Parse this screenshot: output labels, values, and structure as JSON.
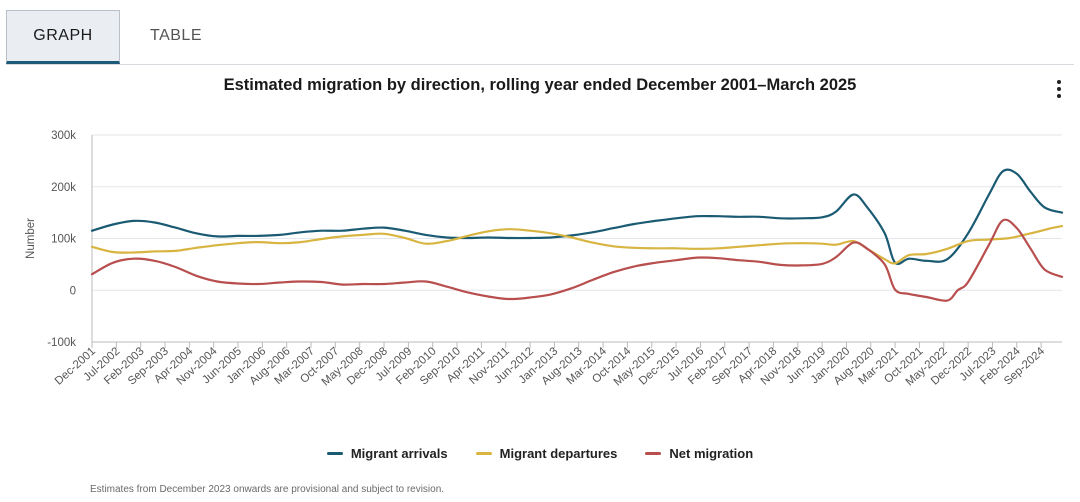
{
  "tabs": [
    {
      "label": "GRAPH",
      "active": true
    },
    {
      "label": "TABLE",
      "active": false
    }
  ],
  "menu_icon": "vertical-ellipsis-icon",
  "footnote": "Estimates from December 2023 onwards are provisional and subject to revision.",
  "colors": {
    "arrivals": "#1a5b73",
    "departures": "#d8b441",
    "net": "#b84e4e",
    "grid": "#e3e6ea",
    "axis": "#bbbbbb"
  },
  "chart_data": {
    "type": "line",
    "title": "Estimated migration by direction, rolling year ended December 2001–March 2025",
    "ylabel": "Number",
    "ylim": [
      -100000,
      300000
    ],
    "yticks": [
      -100000,
      0,
      100000,
      200000,
      300000
    ],
    "ytick_labels": [
      "-100k",
      "0",
      "100k",
      "200k",
      "300k"
    ],
    "x_start": "Dec-2001",
    "x_end": "Mar-2025",
    "xtick_labels": [
      "Dec-2001",
      "Jul-2002",
      "Feb-2003",
      "Sep-2003",
      "Apr-2004",
      "Nov-2004",
      "Jun-2005",
      "Jan-2006",
      "Aug-2006",
      "Mar-2007",
      "Oct-2007",
      "May-2008",
      "Dec-2008",
      "Jul-2009",
      "Feb-2010",
      "Sep-2010",
      "Apr-2011",
      "Nov-2011",
      "Jun-2012",
      "Jan-2013",
      "Aug-2013",
      "Mar-2014",
      "Oct-2014",
      "May-2015",
      "Dec-2015",
      "Jul-2016",
      "Feb-2017",
      "Sep-2017",
      "Apr-2018",
      "Nov-2018",
      "Jun-2019",
      "Jan-2020",
      "Aug-2020",
      "Mar-2021",
      "Oct-2021",
      "May-2022",
      "Dec-2022",
      "Jul-2023",
      "Feb-2024",
      "Sep-2024"
    ],
    "grid": true,
    "legend_position": "bottom-center",
    "series": [
      {
        "name": "Migrant arrivals",
        "color": "#1a5b73",
        "points": [
          [
            "Dec-2001",
            115000
          ],
          [
            "Jun-2002",
            127000
          ],
          [
            "Dec-2002",
            134000
          ],
          [
            "Jun-2003",
            131000
          ],
          [
            "Dec-2003",
            121000
          ],
          [
            "Jun-2004",
            110000
          ],
          [
            "Dec-2004",
            104000
          ],
          [
            "Jun-2005",
            105000
          ],
          [
            "Dec-2005",
            105000
          ],
          [
            "Jun-2006",
            107000
          ],
          [
            "Dec-2006",
            112000
          ],
          [
            "Jun-2007",
            115000
          ],
          [
            "Dec-2007",
            115000
          ],
          [
            "Jun-2008",
            119000
          ],
          [
            "Dec-2008",
            121000
          ],
          [
            "Jun-2009",
            115000
          ],
          [
            "Dec-2009",
            107000
          ],
          [
            "Jun-2010",
            102000
          ],
          [
            "Dec-2010",
            101000
          ],
          [
            "Jun-2011",
            102000
          ],
          [
            "Dec-2011",
            101000
          ],
          [
            "Jun-2012",
            101000
          ],
          [
            "Dec-2012",
            102000
          ],
          [
            "Jun-2013",
            106000
          ],
          [
            "Dec-2013",
            112000
          ],
          [
            "Jun-2014",
            120000
          ],
          [
            "Dec-2014",
            128000
          ],
          [
            "Jun-2015",
            134000
          ],
          [
            "Dec-2015",
            139000
          ],
          [
            "Jun-2016",
            143000
          ],
          [
            "Dec-2016",
            143000
          ],
          [
            "Jun-2017",
            142000
          ],
          [
            "Dec-2017",
            142000
          ],
          [
            "Jun-2018",
            139000
          ],
          [
            "Dec-2018",
            139000
          ],
          [
            "Jun-2019",
            141000
          ],
          [
            "Oct-2019",
            152000
          ],
          [
            "Mar-2020",
            185000
          ],
          [
            "Jul-2020",
            160000
          ],
          [
            "Dec-2020",
            110000
          ],
          [
            "Mar-2021",
            53000
          ],
          [
            "Jul-2021",
            61000
          ],
          [
            "Dec-2021",
            57000
          ],
          [
            "Jun-2022",
            60000
          ],
          [
            "Dec-2022",
            110000
          ],
          [
            "Jun-2023",
            185000
          ],
          [
            "Oct-2023",
            230000
          ],
          [
            "Feb-2024",
            225000
          ],
          [
            "Jun-2024",
            190000
          ],
          [
            "Oct-2024",
            160000
          ],
          [
            "Mar-2025",
            150000
          ]
        ]
      },
      {
        "name": "Migrant departures",
        "color": "#d8b441",
        "points": [
          [
            "Dec-2001",
            84000
          ],
          [
            "Jun-2002",
            74000
          ],
          [
            "Dec-2002",
            73000
          ],
          [
            "Jun-2003",
            75000
          ],
          [
            "Dec-2003",
            76000
          ],
          [
            "Jun-2004",
            82000
          ],
          [
            "Dec-2004",
            87000
          ],
          [
            "Jun-2005",
            91000
          ],
          [
            "Dec-2005",
            93000
          ],
          [
            "Jun-2006",
            91000
          ],
          [
            "Dec-2006",
            93000
          ],
          [
            "Jun-2007",
            99000
          ],
          [
            "Dec-2007",
            104000
          ],
          [
            "Jun-2008",
            107000
          ],
          [
            "Dec-2008",
            109000
          ],
          [
            "Jun-2009",
            101000
          ],
          [
            "Dec-2009",
            90000
          ],
          [
            "Jun-2010",
            95000
          ],
          [
            "Dec-2010",
            105000
          ],
          [
            "Jun-2011",
            114000
          ],
          [
            "Dec-2011",
            118000
          ],
          [
            "Jun-2012",
            115000
          ],
          [
            "Dec-2012",
            110000
          ],
          [
            "Jun-2013",
            102000
          ],
          [
            "Dec-2013",
            92000
          ],
          [
            "Jun-2014",
            85000
          ],
          [
            "Dec-2014",
            82000
          ],
          [
            "Jun-2015",
            81000
          ],
          [
            "Dec-2015",
            81000
          ],
          [
            "Jun-2016",
            80000
          ],
          [
            "Dec-2016",
            81000
          ],
          [
            "Jun-2017",
            84000
          ],
          [
            "Dec-2017",
            87000
          ],
          [
            "Jun-2018",
            90000
          ],
          [
            "Dec-2018",
            91000
          ],
          [
            "Jun-2019",
            90000
          ],
          [
            "Oct-2019",
            88000
          ],
          [
            "Mar-2020",
            95000
          ],
          [
            "Jul-2020",
            80000
          ],
          [
            "Dec-2020",
            60000
          ],
          [
            "Mar-2021",
            52000
          ],
          [
            "Jul-2021",
            68000
          ],
          [
            "Dec-2021",
            70000
          ],
          [
            "Jun-2022",
            80000
          ],
          [
            "Dec-2022",
            95000
          ],
          [
            "Jun-2023",
            98000
          ],
          [
            "Dec-2023",
            101000
          ],
          [
            "Jun-2024",
            110000
          ],
          [
            "Dec-2024",
            120000
          ],
          [
            "Mar-2025",
            124000
          ]
        ]
      },
      {
        "name": "Net migration",
        "color": "#b84e4e",
        "points": [
          [
            "Dec-2001",
            31000
          ],
          [
            "Jun-2002",
            53000
          ],
          [
            "Dec-2002",
            61000
          ],
          [
            "Jun-2003",
            57000
          ],
          [
            "Dec-2003",
            45000
          ],
          [
            "Jun-2004",
            28000
          ],
          [
            "Dec-2004",
            17000
          ],
          [
            "Jun-2005",
            13000
          ],
          [
            "Dec-2005",
            12000
          ],
          [
            "Jun-2006",
            15000
          ],
          [
            "Dec-2006",
            17000
          ],
          [
            "Jun-2007",
            16000
          ],
          [
            "Dec-2007",
            11000
          ],
          [
            "Jun-2008",
            12000
          ],
          [
            "Dec-2008",
            12000
          ],
          [
            "Jun-2009",
            15000
          ],
          [
            "Dec-2009",
            17000
          ],
          [
            "Jun-2010",
            7000
          ],
          [
            "Dec-2010",
            -4000
          ],
          [
            "Jun-2011",
            -12000
          ],
          [
            "Dec-2011",
            -17000
          ],
          [
            "Jun-2012",
            -14000
          ],
          [
            "Dec-2012",
            -8000
          ],
          [
            "Jun-2013",
            4000
          ],
          [
            "Dec-2013",
            20000
          ],
          [
            "Jun-2014",
            35000
          ],
          [
            "Dec-2014",
            46000
          ],
          [
            "Jun-2015",
            53000
          ],
          [
            "Dec-2015",
            58000
          ],
          [
            "Jun-2016",
            63000
          ],
          [
            "Dec-2016",
            62000
          ],
          [
            "Jun-2017",
            58000
          ],
          [
            "Dec-2017",
            55000
          ],
          [
            "Jun-2018",
            49000
          ],
          [
            "Dec-2018",
            48000
          ],
          [
            "Jun-2019",
            51000
          ],
          [
            "Oct-2019",
            64000
          ],
          [
            "Mar-2020",
            92000
          ],
          [
            "Jul-2020",
            80000
          ],
          [
            "Dec-2020",
            50000
          ],
          [
            "Mar-2021",
            1000
          ],
          [
            "Jul-2021",
            -7000
          ],
          [
            "Dec-2021",
            -13000
          ],
          [
            "Jun-2022",
            -20000
          ],
          [
            "Sep-2022",
            0
          ],
          [
            "Dec-2022",
            16000
          ],
          [
            "Jun-2023",
            88000
          ],
          [
            "Oct-2023",
            135000
          ],
          [
            "Feb-2024",
            120000
          ],
          [
            "Jun-2024",
            80000
          ],
          [
            "Oct-2024",
            40000
          ],
          [
            "Mar-2025",
            26000
          ]
        ]
      }
    ]
  }
}
